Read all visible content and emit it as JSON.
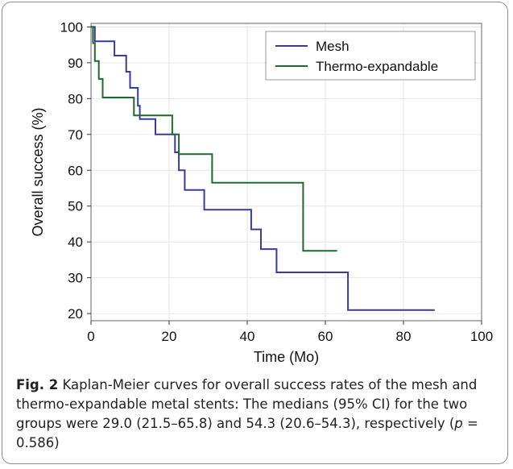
{
  "chart_data": {
    "type": "line",
    "step": true,
    "xlabel": "Time (Mo)",
    "ylabel": "Overall success (%)",
    "xlim": [
      0,
      100
    ],
    "ylim": [
      18,
      101
    ],
    "xticks": [
      0,
      20,
      40,
      60,
      80,
      100
    ],
    "yticks": [
      20,
      30,
      40,
      50,
      60,
      70,
      80,
      90,
      100
    ],
    "grid": true,
    "legend_position": "top-right",
    "series": [
      {
        "name": "Mesh",
        "color": "#3a3a9a",
        "points": [
          [
            0,
            100
          ],
          [
            1,
            100
          ],
          [
            1,
            96
          ],
          [
            6,
            96
          ],
          [
            6,
            92
          ],
          [
            9,
            92
          ],
          [
            9,
            87.5
          ],
          [
            10,
            87.5
          ],
          [
            10,
            83
          ],
          [
            12,
            83
          ],
          [
            12,
            78
          ],
          [
            12.5,
            78
          ],
          [
            12.5,
            74.3
          ],
          [
            16.5,
            74.3
          ],
          [
            16.5,
            70
          ],
          [
            21.5,
            70
          ],
          [
            21.5,
            65
          ],
          [
            22.5,
            65
          ],
          [
            22.5,
            60
          ],
          [
            24,
            60
          ],
          [
            24,
            54.5
          ],
          [
            29,
            54.5
          ],
          [
            29,
            49
          ],
          [
            41,
            49
          ],
          [
            41,
            43.5
          ],
          [
            43.5,
            43.5
          ],
          [
            43.5,
            38
          ],
          [
            47.5,
            38
          ],
          [
            47.5,
            31.5
          ],
          [
            65.8,
            31.5
          ],
          [
            65.8,
            21
          ],
          [
            88,
            21
          ]
        ]
      },
      {
        "name": "Thermo-expandable",
        "color": "#1e6b2e",
        "points": [
          [
            0,
            100
          ],
          [
            0.5,
            100
          ],
          [
            0.5,
            95.5
          ],
          [
            1,
            95.5
          ],
          [
            1,
            90.5
          ],
          [
            2,
            90.5
          ],
          [
            2,
            85.5
          ],
          [
            3,
            85.5
          ],
          [
            3,
            80.3
          ],
          [
            11,
            80.3
          ],
          [
            11,
            75.3
          ],
          [
            20.8,
            75.3
          ],
          [
            20.8,
            70
          ],
          [
            22.5,
            70
          ],
          [
            22.5,
            64.5
          ],
          [
            31,
            64.5
          ],
          [
            31,
            56.5
          ],
          [
            54.3,
            56.5
          ],
          [
            54.3,
            37.5
          ],
          [
            63,
            37.5
          ]
        ]
      }
    ]
  },
  "caption": {
    "label": "Fig. 2",
    "text_before_p": " Kaplan-Meier curves for overall success rates of the mesh and thermo-expandable metal stents: The medians (95% CI) for the two groups were 29.0 (21.5–65.8) and 54.3 (20.6–54.3), respectively (",
    "p_symbol": "p",
    "text_after_p": " = 0.586)"
  }
}
